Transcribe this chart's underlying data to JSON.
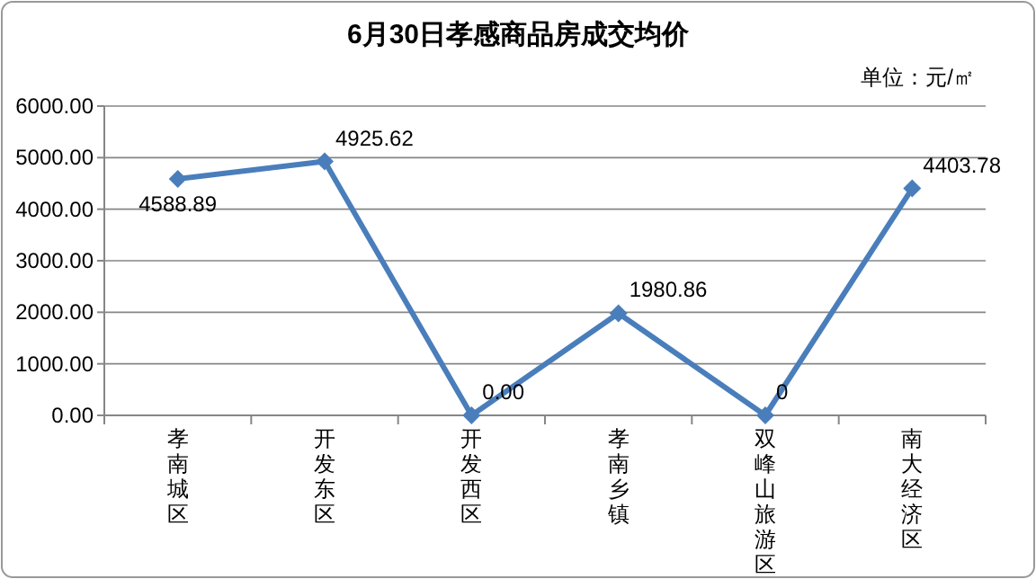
{
  "chart_data": {
    "type": "line",
    "title": "6月30日孝感商品房成交均价",
    "annotations": [
      "单位：元/㎡"
    ],
    "categories": [
      "孝南城区",
      "开发东区",
      "开发西区",
      "孝南乡镇",
      "双峰山旅游区",
      "南大经济区"
    ],
    "series": [
      {
        "color": "#4a7ebb",
        "values": [
          4588.89,
          4925.62,
          0.0,
          1980.86,
          0,
          4403.78
        ],
        "value_labels": [
          "4588.89",
          "4925.62",
          "0.00",
          "1980.86",
          "0",
          "4403.78"
        ]
      }
    ],
    "ylim": [
      0,
      6000
    ],
    "yticks": [
      {
        "value": 0,
        "label": "0.00"
      },
      {
        "value": 1000,
        "label": "1000.00"
      },
      {
        "value": 2000,
        "label": "2000.00"
      },
      {
        "value": 3000,
        "label": "3000.00"
      },
      {
        "value": 4000,
        "label": "4000.00"
      },
      {
        "value": 5000,
        "label": "5000.00"
      },
      {
        "value": 6000,
        "label": "6000.00"
      }
    ],
    "grid": "y",
    "marker": "diamond",
    "line_style": "solid"
  }
}
